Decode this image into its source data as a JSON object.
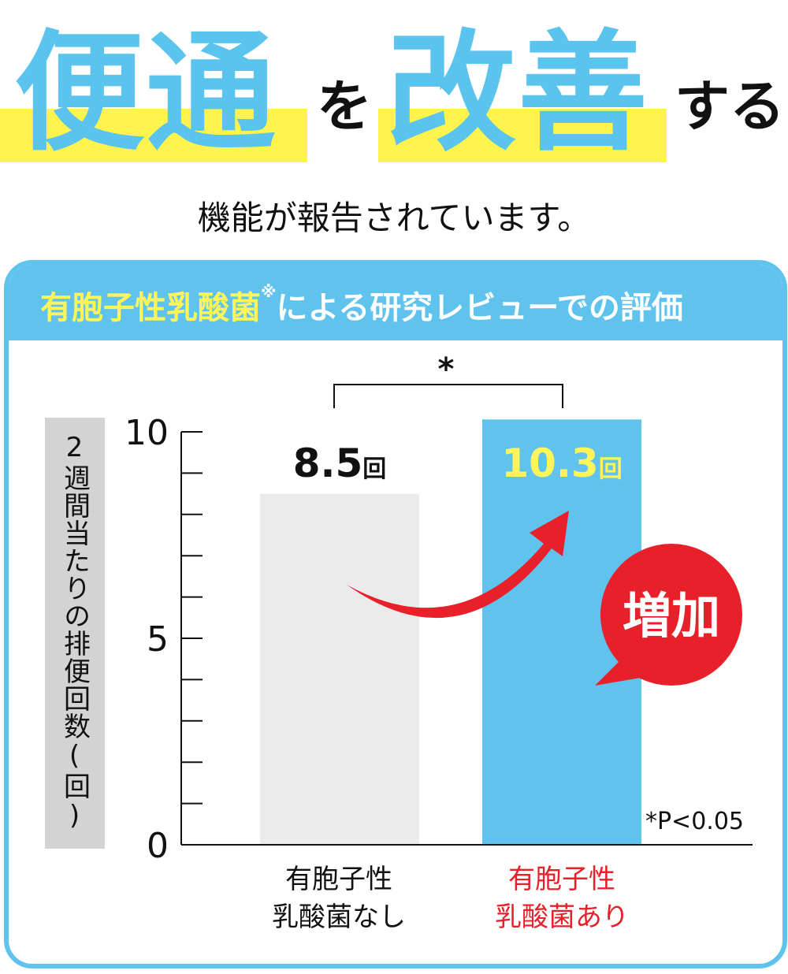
{
  "headline": {
    "part1": "便通",
    "part2": "を",
    "part3": "改善",
    "part4": "する"
  },
  "subtitle": "機能が報告されています。",
  "panel": {
    "title_highlight": "有胞子性乳酸菌",
    "title_mark": "※",
    "title_rest": "による研究レビューでの評価"
  },
  "chart_data": {
    "type": "bar",
    "ylabel": "2週間当たりの排便回数(回)",
    "ylim": [
      0,
      10
    ],
    "yticks": [
      0,
      5,
      10
    ],
    "ytick_labels": [
      "0",
      "5",
      "10"
    ],
    "minor_tick_step": 1,
    "categories": [
      {
        "line1": "有胞子性",
        "line2": "乳酸菌なし"
      },
      {
        "line1": "有胞子性",
        "line2": "乳酸菌あり"
      }
    ],
    "values": [
      8.5,
      10.3
    ],
    "value_labels": [
      "8.5",
      "10.3"
    ],
    "unit": "回",
    "colors": [
      "#EBEBEB",
      "#5FC3EE"
    ],
    "significance_mark": "*",
    "footnote": "*P<0.05",
    "annotation": "増加",
    "annotation_color": "#E8202A",
    "highlight_label_color": "#E8202A",
    "value_label_colors": [
      "#111111",
      "#FFF45A"
    ]
  }
}
